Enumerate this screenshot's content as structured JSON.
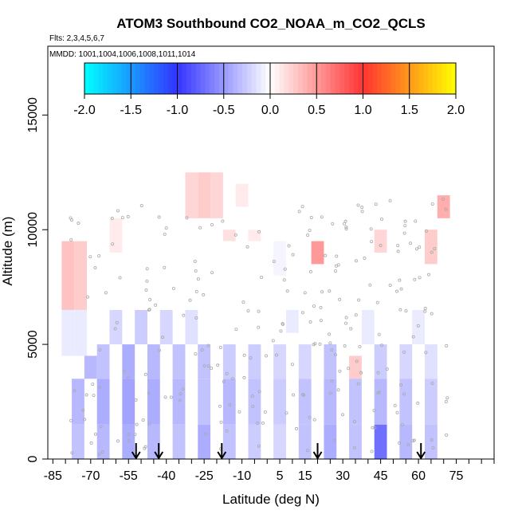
{
  "chart_data": {
    "type": "heatmap",
    "title": "ATOM3 Southbound CO2_NOAA_m_CO2_QCLS",
    "flights_label": "Flts: 2,3,4,5,6,7",
    "dates_label": "MMDD: 1001,1004,1006,1008,1011,1014",
    "xlabel": "Latitude (deg N)",
    "ylabel": "Altitude (m)",
    "xlim": [
      -87,
      90
    ],
    "ylim": [
      0,
      18000
    ],
    "x_ticks": [
      -85,
      -70,
      -55,
      -40,
      -25,
      -10,
      5,
      15,
      30,
      45,
      60,
      75
    ],
    "x_tick_labels": [
      "-85",
      "-70",
      "-55",
      "-40",
      "-25",
      "-10",
      "5",
      "15",
      "30",
      "45",
      "60",
      "75"
    ],
    "y_ticks": [
      0,
      5000,
      10000,
      15000
    ],
    "y_tick_labels": [
      "0",
      "5000",
      "10000",
      "15000"
    ],
    "colorbar": {
      "range": [
        -2.0,
        2.0
      ],
      "ticks": [
        -2.0,
        -1.5,
        -1.0,
        -0.5,
        0.0,
        0.5,
        1.0,
        1.5,
        2.0
      ],
      "tick_labels": [
        "-2.0",
        "-1.5",
        "-1.0",
        "-0.5",
        "0.0",
        "0.5",
        "1.0",
        "1.5",
        "2.0"
      ],
      "colors": [
        "#00ffff",
        "#3333ff",
        "#ffffff",
        "#ff3333",
        "#ffff00"
      ]
    },
    "arrow_latitudes": [
      -52,
      -43,
      -18,
      20,
      61
    ],
    "cell_size": {
      "dlat": 5,
      "dalt": 500
    },
    "cells": [
      {
        "lat": -79,
        "alt_min": 6500,
        "alt_max": 9500,
        "value": 0.3
      },
      {
        "lat": -74,
        "alt_min": 6500,
        "alt_max": 9500,
        "value": 0.25
      },
      {
        "lat": -79,
        "alt_min": 4500,
        "alt_max": 6500,
        "value": -0.1
      },
      {
        "lat": -74,
        "alt_min": 4500,
        "alt_max": 6500,
        "value": -0.1
      },
      {
        "lat": -60,
        "alt_min": 9000,
        "alt_max": 10500,
        "value": 0.1
      },
      {
        "lat": -30,
        "alt_min": 10500,
        "alt_max": 12500,
        "value": 0.2
      },
      {
        "lat": -25,
        "alt_min": 10500,
        "alt_max": 12500,
        "value": 0.25
      },
      {
        "lat": -20,
        "alt_min": 10500,
        "alt_max": 12500,
        "value": 0.2
      },
      {
        "lat": -10,
        "alt_min": 11000,
        "alt_max": 12000,
        "value": 0.1
      },
      {
        "lat": -15,
        "alt_min": 9500,
        "alt_max": 10000,
        "value": 0.15
      },
      {
        "lat": -5,
        "alt_min": 9500,
        "alt_max": 10000,
        "value": 0.1
      },
      {
        "lat": 5,
        "alt_min": 8000,
        "alt_max": 9500,
        "value": -0.05
      },
      {
        "lat": 20,
        "alt_min": 8500,
        "alt_max": 9500,
        "value": 0.5
      },
      {
        "lat": 45,
        "alt_min": 9000,
        "alt_max": 10000,
        "value": 0.2
      },
      {
        "lat": 65,
        "alt_min": 8500,
        "alt_max": 10000,
        "value": 0.25
      },
      {
        "lat": 70,
        "alt_min": 10500,
        "alt_max": 11500,
        "value": 0.4
      },
      {
        "lat": -60,
        "alt_min": 5000,
        "alt_max": 6500,
        "value": -0.2
      },
      {
        "lat": -50,
        "alt_min": 5000,
        "alt_max": 6500,
        "value": -0.25
      },
      {
        "lat": -40,
        "alt_min": 5000,
        "alt_max": 6500,
        "value": -0.2
      },
      {
        "lat": -30,
        "alt_min": 5000,
        "alt_max": 6500,
        "value": -0.15
      },
      {
        "lat": 10,
        "alt_min": 5500,
        "alt_max": 6500,
        "value": -0.1
      },
      {
        "lat": 40,
        "alt_min": 5000,
        "alt_max": 6500,
        "value": -0.1
      },
      {
        "lat": 60,
        "alt_min": 5000,
        "alt_max": 6500,
        "value": -0.1
      },
      {
        "lat": -70,
        "alt_min": 3500,
        "alt_max": 4500,
        "value": -0.35
      },
      {
        "lat": -65,
        "alt_min": 3500,
        "alt_max": 5000,
        "value": -0.3
      },
      {
        "lat": -55,
        "alt_min": 3500,
        "alt_max": 5000,
        "value": -0.4
      },
      {
        "lat": -45,
        "alt_min": 3500,
        "alt_max": 5000,
        "value": -0.35
      },
      {
        "lat": -35,
        "alt_min": 3500,
        "alt_max": 5000,
        "value": -0.3
      },
      {
        "lat": -25,
        "alt_min": 3500,
        "alt_max": 5000,
        "value": -0.3
      },
      {
        "lat": -15,
        "alt_min": 3500,
        "alt_max": 5000,
        "value": -0.25
      },
      {
        "lat": -5,
        "alt_min": 3500,
        "alt_max": 5000,
        "value": -0.25
      },
      {
        "lat": 5,
        "alt_min": 3500,
        "alt_max": 5000,
        "value": -0.2
      },
      {
        "lat": 15,
        "alt_min": 3500,
        "alt_max": 5000,
        "value": -0.2
      },
      {
        "lat": 25,
        "alt_min": 3500,
        "alt_max": 5000,
        "value": -0.3
      },
      {
        "lat": 35,
        "alt_min": 3500,
        "alt_max": 4500,
        "value": 0.25
      },
      {
        "lat": 45,
        "alt_min": 3500,
        "alt_max": 5000,
        "value": -0.25
      },
      {
        "lat": 55,
        "alt_min": 3500,
        "alt_max": 5000,
        "value": -0.2
      },
      {
        "lat": 65,
        "alt_min": 3500,
        "alt_max": 5000,
        "value": -0.15
      },
      {
        "lat": -75,
        "alt_min": 1500,
        "alt_max": 3500,
        "value": -0.35
      },
      {
        "lat": -65,
        "alt_min": 1500,
        "alt_max": 3500,
        "value": -0.4
      },
      {
        "lat": -55,
        "alt_min": 1500,
        "alt_max": 3500,
        "value": -0.45
      },
      {
        "lat": -45,
        "alt_min": 1500,
        "alt_max": 3500,
        "value": -0.4
      },
      {
        "lat": -35,
        "alt_min": 1500,
        "alt_max": 3500,
        "value": -0.35
      },
      {
        "lat": -25,
        "alt_min": 1500,
        "alt_max": 3500,
        "value": -0.3
      },
      {
        "lat": -15,
        "alt_min": 1500,
        "alt_max": 3500,
        "value": -0.35
      },
      {
        "lat": -5,
        "alt_min": 1500,
        "alt_max": 3500,
        "value": -0.3
      },
      {
        "lat": 5,
        "alt_min": 1500,
        "alt_max": 3500,
        "value": -0.25
      },
      {
        "lat": 15,
        "alt_min": 1500,
        "alt_max": 3500,
        "value": -0.3
      },
      {
        "lat": 25,
        "alt_min": 1500,
        "alt_max": 3500,
        "value": -0.35
      },
      {
        "lat": 35,
        "alt_min": 1500,
        "alt_max": 3500,
        "value": -0.3
      },
      {
        "lat": 45,
        "alt_min": 1500,
        "alt_max": 3500,
        "value": -0.35
      },
      {
        "lat": 55,
        "alt_min": 1500,
        "alt_max": 3500,
        "value": -0.3
      },
      {
        "lat": 65,
        "alt_min": 1500,
        "alt_max": 3500,
        "value": -0.25
      },
      {
        "lat": -75,
        "alt_min": 0,
        "alt_max": 1500,
        "value": -0.3
      },
      {
        "lat": -65,
        "alt_min": 0,
        "alt_max": 1500,
        "value": -0.35
      },
      {
        "lat": -55,
        "alt_min": 0,
        "alt_max": 1500,
        "value": -0.4
      },
      {
        "lat": -45,
        "alt_min": 0,
        "alt_max": 1500,
        "value": -0.35
      },
      {
        "lat": -35,
        "alt_min": 0,
        "alt_max": 1500,
        "value": -0.3
      },
      {
        "lat": -25,
        "alt_min": 0,
        "alt_max": 1500,
        "value": -0.4
      },
      {
        "lat": -15,
        "alt_min": 0,
        "alt_max": 1500,
        "value": -0.3
      },
      {
        "lat": -5,
        "alt_min": 0,
        "alt_max": 1500,
        "value": -0.25
      },
      {
        "lat": 5,
        "alt_min": 0,
        "alt_max": 1500,
        "value": -0.2
      },
      {
        "lat": 15,
        "alt_min": 0,
        "alt_max": 1500,
        "value": -0.3
      },
      {
        "lat": 25,
        "alt_min": 0,
        "alt_max": 1500,
        "value": -0.4
      },
      {
        "lat": 35,
        "alt_min": 0,
        "alt_max": 1500,
        "value": -0.3
      },
      {
        "lat": 45,
        "alt_min": 0,
        "alt_max": 1500,
        "value": -0.7
      },
      {
        "lat": 55,
        "alt_min": 0,
        "alt_max": 1500,
        "value": -0.35
      },
      {
        "lat": 65,
        "alt_min": 0,
        "alt_max": 1500,
        "value": -0.3
      }
    ]
  }
}
